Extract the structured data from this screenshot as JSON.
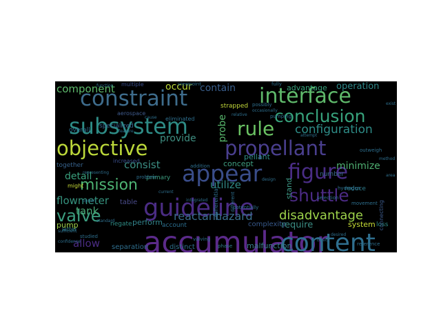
{
  "words": [
    {
      "text": "accumulator",
      "color": "#5b2a8a"
    },
    {
      "text": "content",
      "color": "#2f6f8f"
    },
    {
      "text": "guideline",
      "color": "#4b2c84"
    },
    {
      "text": "objective",
      "color": "#bcd83a"
    },
    {
      "text": "propellant",
      "color": "#4a3f8f"
    },
    {
      "text": "subsystem",
      "color": "#2e8c86"
    },
    {
      "text": "interface",
      "color": "#5fb96b"
    },
    {
      "text": "constraint",
      "color": "#3e6c8c"
    },
    {
      "text": "conclusion",
      "color": "#37a27c"
    },
    {
      "text": "appear",
      "color": "#3a4d8a"
    },
    {
      "text": "figure",
      "color": "#4a2d86"
    },
    {
      "text": "rule",
      "color": "#6ac263"
    },
    {
      "text": "mission",
      "color": "#4eb474"
    },
    {
      "text": "shuttle",
      "color": "#4b2a84"
    },
    {
      "text": "valve",
      "color": "#3c9e80"
    },
    {
      "text": "disadvantage",
      "color": "#9dd24a"
    },
    {
      "text": "configuration",
      "color": "#2e8c87"
    },
    {
      "text": "probe",
      "color": "#58b76c"
    },
    {
      "text": "reactant",
      "color": "#3a6b8c"
    },
    {
      "text": "hazard",
      "color": "#3a6e8c"
    },
    {
      "text": "component",
      "color": "#5db96b"
    },
    {
      "text": "minimize",
      "color": "#4fb072"
    },
    {
      "text": "flowmeter",
      "color": "#36937f"
    },
    {
      "text": "utilize",
      "color": "#318a86"
    },
    {
      "text": "operation",
      "color": "#2e8889"
    },
    {
      "text": "advantage",
      "color": "#37a17b"
    },
    {
      "text": "provide",
      "color": "#3f8f82"
    },
    {
      "text": "consist",
      "color": "#3c8f84"
    },
    {
      "text": "contain",
      "color": "#3a5f8d"
    },
    {
      "text": "occur",
      "color": "#bdd83a"
    },
    {
      "text": "detail",
      "color": "#3aa07d"
    },
    {
      "text": "tank",
      "color": "#49a978"
    },
    {
      "text": "allow",
      "color": "#4b2c84"
    },
    {
      "text": "stand",
      "color": "#3c9683"
    },
    {
      "text": "require",
      "color": "#3b8c84"
    },
    {
      "text": "system",
      "color": "#c7dc36"
    },
    {
      "text": "perform",
      "color": "#33838b"
    },
    {
      "text": "pump",
      "color": "#9fd249"
    },
    {
      "text": "pellant",
      "color": "#2f8d86"
    },
    {
      "text": "concept",
      "color": "#3f9e80"
    },
    {
      "text": "malfunction",
      "color": "#3a7e8d"
    },
    {
      "text": "separation",
      "color": "#2f6f8e"
    },
    {
      "text": "distinct",
      "color": "#2f708e"
    },
    {
      "text": "complexity",
      "color": "#37598b"
    },
    {
      "text": "table",
      "color": "#4a4c8b"
    },
    {
      "text": "strapped",
      "color": "#c3d93a"
    },
    {
      "text": "negate",
      "color": "#2f8c85"
    },
    {
      "text": "account",
      "color": "#2c6e8f"
    },
    {
      "text": "aerospace",
      "color": "#3f5a8c"
    },
    {
      "text": "eliminated",
      "color": "#2e6f8e"
    },
    {
      "text": "primary",
      "color": "#3d9e80"
    },
    {
      "text": "overall",
      "color": "#2e6e8e"
    },
    {
      "text": "together",
      "color": "#37638d"
    },
    {
      "text": "specialized",
      "color": "#37648d"
    },
    {
      "text": "increased",
      "color": "#3a4e8a"
    },
    {
      "text": "might",
      "color": "#c8dc37"
    },
    {
      "text": "latter",
      "color": "#2e7f8c"
    },
    {
      "text": "studied",
      "color": "#2e6f8e"
    },
    {
      "text": "fully",
      "color": "#2e6f8e"
    },
    {
      "text": "number",
      "color": "#3a6d8d"
    },
    {
      "text": "reduce",
      "color": "#2e7c8d"
    },
    {
      "text": "loss",
      "color": "#2f8c86"
    },
    {
      "text": "connecting",
      "color": "#3c5a8c"
    },
    {
      "text": "possibly",
      "color": "#2e6f8e"
    },
    {
      "text": "viewpoint",
      "color": "#2e6f8e"
    },
    {
      "text": "multiple",
      "color": "#3a4d8a"
    },
    {
      "text": "valving",
      "color": "#2e6f8e"
    },
    {
      "text": "phase",
      "color": "#2e7e8c"
    },
    {
      "text": "differential",
      "color": "#2e6f8e"
    },
    {
      "text": "potentially",
      "color": "#2e6f8e"
    },
    {
      "text": "pumping",
      "color": "#2e6f8e"
    },
    {
      "text": "movement",
      "color": "#2e6f8e"
    },
    {
      "text": "reference",
      "color": "#2e6f8e"
    },
    {
      "text": "outweigh",
      "color": "#2e6f8e"
    },
    {
      "text": "different",
      "color": "#2e6f8e"
    },
    {
      "text": "feature",
      "color": "#2e6f8e"
    },
    {
      "text": "problem",
      "color": "#2e6f8e"
    },
    {
      "text": "addition",
      "color": "#2e6f8e"
    },
    {
      "text": "hydrogen",
      "color": "#2e6f8e"
    },
    {
      "text": "selection",
      "color": "#2e6f8e"
    },
    {
      "text": "option",
      "color": "#2e6f8e"
    },
    {
      "text": "standard",
      "color": "#2e6f8e"
    },
    {
      "text": "representing",
      "color": "#2e6f8e"
    },
    {
      "text": "sufficient",
      "color": "#2e6f8e"
    },
    {
      "text": "confidence",
      "color": "#2e6f8e"
    },
    {
      "text": "exist",
      "color": "#2e6f8e"
    },
    {
      "text": "integrated",
      "color": "#2e6f8e"
    },
    {
      "text": "occasionally",
      "color": "#2e6f8e"
    },
    {
      "text": "attempt",
      "color": "#2e6f8e"
    },
    {
      "text": "basic",
      "color": "#2e6f8e"
    },
    {
      "text": "function",
      "color": "#2e6f8e"
    },
    {
      "text": "cause",
      "color": "#2e6f8e"
    },
    {
      "text": "relative",
      "color": "#2e6f8e"
    },
    {
      "text": "method",
      "color": "#2e6f8e"
    },
    {
      "text": "area",
      "color": "#2e6f8e"
    },
    {
      "text": "desired",
      "color": "#2e6f8e"
    },
    {
      "text": "design",
      "color": "#2e6f8e"
    },
    {
      "text": "current",
      "color": "#2e6f8e"
    }
  ]
}
